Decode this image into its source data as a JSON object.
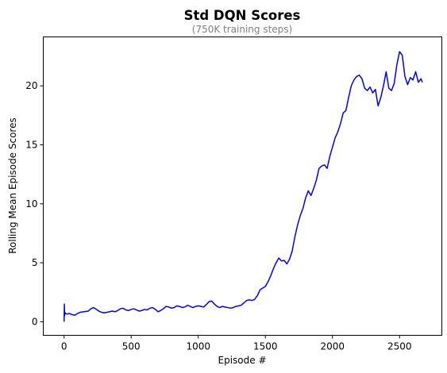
{
  "chart_data": {
    "type": "line",
    "title": "Std DQN Scores",
    "subtitle": "(750K training steps)",
    "xlabel": "Episode #",
    "ylabel": "Rolling Mean Episode Scores",
    "xlim": [
      -155,
      2815
    ],
    "ylim": [
      -1.15,
      24.15
    ],
    "x_ticks": [
      0,
      500,
      1000,
      1500,
      2000,
      2500
    ],
    "y_ticks": [
      0,
      5,
      10,
      15,
      20
    ],
    "grid": false,
    "legend": "none",
    "line_color": "#0000ff",
    "series": [
      {
        "x": [
          0,
          2,
          4,
          6,
          10,
          20,
          40,
          60,
          80,
          100,
          120,
          150,
          180,
          200,
          220,
          240,
          260,
          280,
          300,
          320,
          340,
          360,
          380,
          400,
          420,
          440,
          460,
          480,
          500,
          520,
          540,
          560,
          580,
          600,
          620,
          640,
          660,
          680,
          700,
          720,
          740,
          760,
          780,
          800,
          820,
          840,
          860,
          880,
          900,
          920,
          940,
          960,
          980,
          1000,
          1020,
          1040,
          1060,
          1080,
          1100,
          1120,
          1140,
          1160,
          1180,
          1200,
          1220,
          1240,
          1260,
          1280,
          1300,
          1320,
          1340,
          1360,
          1380,
          1400,
          1420,
          1440,
          1460,
          1480,
          1500,
          1520,
          1540,
          1560,
          1580,
          1600,
          1620,
          1640,
          1660,
          1680,
          1700,
          1720,
          1740,
          1760,
          1780,
          1800,
          1820,
          1840,
          1860,
          1880,
          1900,
          1920,
          1940,
          1960,
          1980,
          2000,
          2020,
          2040,
          2060,
          2080,
          2100,
          2120,
          2140,
          2160,
          2180,
          2200,
          2220,
          2240,
          2260,
          2280,
          2300,
          2320,
          2340,
          2360,
          2380,
          2400,
          2420,
          2440,
          2460,
          2480,
          2500,
          2520,
          2540,
          2560,
          2580,
          2600,
          2620,
          2640,
          2660,
          2670
        ],
        "y": [
          0.0,
          1.5,
          0.5,
          0.8,
          0.7,
          0.65,
          0.7,
          0.6,
          0.55,
          0.7,
          0.8,
          0.85,
          0.9,
          1.1,
          1.2,
          1.05,
          0.9,
          0.8,
          0.75,
          0.8,
          0.85,
          0.9,
          0.85,
          0.95,
          1.1,
          1.15,
          1.0,
          0.95,
          1.05,
          1.1,
          1.0,
          0.9,
          0.95,
          1.05,
          1.0,
          1.15,
          1.2,
          1.05,
          0.85,
          0.95,
          1.1,
          1.3,
          1.25,
          1.15,
          1.2,
          1.35,
          1.3,
          1.2,
          1.25,
          1.4,
          1.3,
          1.2,
          1.3,
          1.35,
          1.3,
          1.25,
          1.45,
          1.7,
          1.75,
          1.5,
          1.3,
          1.2,
          1.3,
          1.25,
          1.2,
          1.15,
          1.2,
          1.3,
          1.35,
          1.4,
          1.6,
          1.8,
          1.85,
          1.8,
          1.9,
          2.2,
          2.7,
          2.85,
          3.0,
          3.4,
          3.9,
          4.5,
          5.0,
          5.4,
          5.15,
          5.2,
          4.9,
          5.3,
          6.0,
          7.2,
          8.2,
          9.0,
          9.6,
          10.5,
          11.1,
          10.7,
          11.3,
          12.0,
          13.0,
          13.2,
          13.3,
          13.0,
          14.0,
          14.8,
          15.6,
          16.1,
          16.8,
          17.7,
          17.9,
          19.0,
          20.0,
          20.5,
          20.8,
          20.9,
          20.6,
          19.8,
          19.6,
          19.9,
          19.4,
          19.7,
          18.3,
          19.0,
          20.0,
          21.2,
          19.8,
          19.6,
          20.2,
          21.8,
          22.9,
          22.6,
          20.8,
          20.1,
          20.7,
          20.5,
          21.2,
          20.3,
          20.6,
          20.3
        ]
      }
    ]
  }
}
